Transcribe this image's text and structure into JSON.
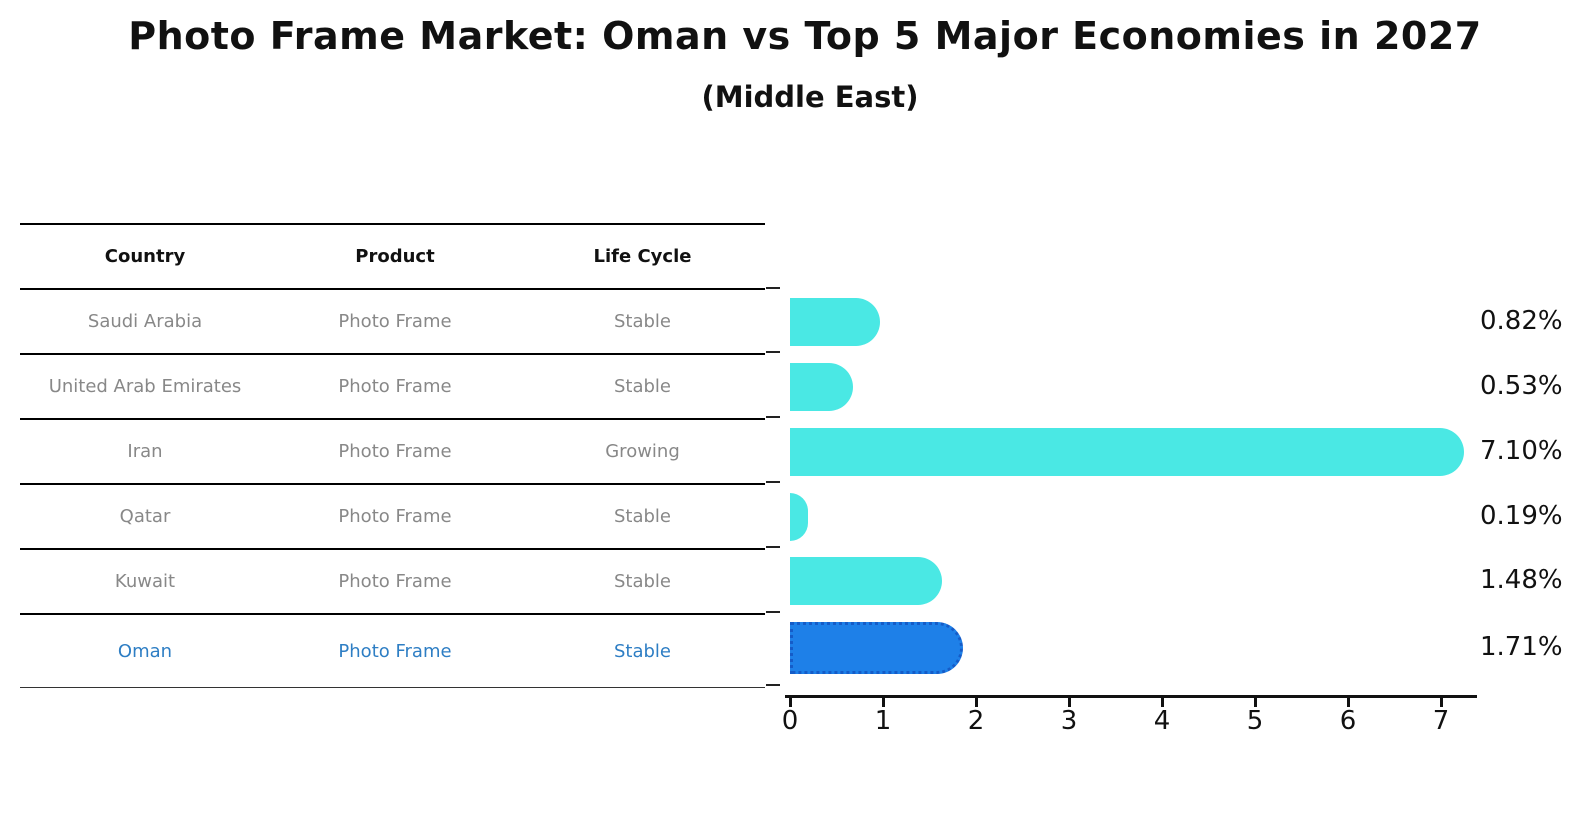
{
  "title": "Photo Frame Market: Oman vs Top 5 Major Economies in 2027",
  "subtitle": "(Middle East)",
  "table": {
    "headers": [
      "Country",
      "Product",
      "Life Cycle"
    ],
    "rows": [
      {
        "country": "Saudi Arabia",
        "product": "Photo Frame",
        "life_cycle": "Stable",
        "highlight": false
      },
      {
        "country": "United Arab Emirates",
        "product": "Photo Frame",
        "life_cycle": "Stable",
        "highlight": false
      },
      {
        "country": "Iran",
        "product": "Photo Frame",
        "life_cycle": "Growing",
        "highlight": false
      },
      {
        "country": "Qatar",
        "product": "Photo Frame",
        "life_cycle": "Stable",
        "highlight": false
      },
      {
        "country": "Kuwait",
        "product": "Photo Frame",
        "life_cycle": "Stable",
        "highlight": false
      },
      {
        "country": "Oman",
        "product": "Photo Frame",
        "life_cycle": "Stable",
        "highlight": true
      }
    ]
  },
  "chart_data": {
    "type": "bar",
    "orientation": "horizontal",
    "categories": [
      "Saudi Arabia",
      "United Arab Emirates",
      "Iran",
      "Qatar",
      "Kuwait",
      "Oman"
    ],
    "values": [
      0.82,
      0.53,
      7.1,
      0.19,
      1.48,
      1.71
    ],
    "value_labels": [
      "0.82%",
      "0.53%",
      "7.10%",
      "0.19%",
      "1.48%",
      "1.71%"
    ],
    "x_ticks": [
      0,
      1,
      2,
      3,
      4,
      5,
      6,
      7
    ],
    "xlim": [
      0,
      7.4
    ],
    "grid": false,
    "legend": null,
    "bar_color": "#4ae8e4",
    "highlight_bar_color": "#1e80e8",
    "highlight_border_color": "#155cc8",
    "highlight_text_color": "#2e7ec4",
    "highlight_index": 5
  }
}
